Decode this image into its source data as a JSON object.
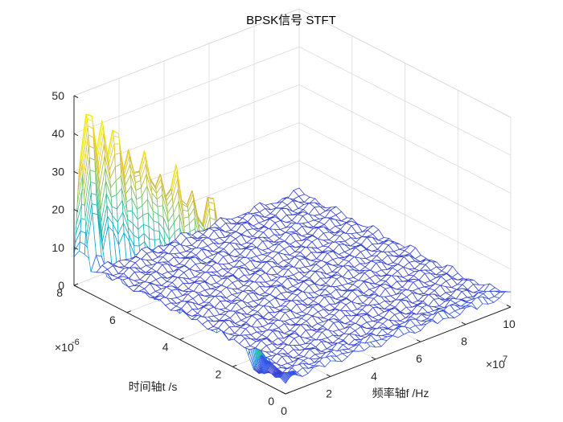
{
  "chart_data": {
    "type": "surface-mesh",
    "title": "BPSK信号 STFT",
    "xlabel": "频率轴f /Hz",
    "ylabel": "时间轴t /s",
    "zlabel": "",
    "x_exponent_base": "×10",
    "x_exponent_power": "7",
    "y_exponent_base": "×10",
    "y_exponent_power": "-6",
    "xlim": [
      0,
      10
    ],
    "ylim": [
      0,
      8
    ],
    "zlim": [
      0,
      50
    ],
    "x_ticks": [
      0,
      2,
      4,
      6,
      8,
      10
    ],
    "y_ticks": [
      0,
      2,
      4,
      6,
      8
    ],
    "z_ticks": [
      0,
      10,
      20,
      30,
      40,
      50
    ],
    "x_tick_labels": [
      "0",
      "2",
      "4",
      "6",
      "8",
      "10"
    ],
    "y_tick_labels": [
      "0",
      "2",
      "4",
      "6",
      "8"
    ],
    "z_tick_labels": [
      "0",
      "10",
      "20",
      "30",
      "40",
      "50"
    ],
    "grid": true,
    "colormap": "parula",
    "carrier_frequency_x": 0.3,
    "ridge_peaks_time": [
      7.7,
      7.2,
      6.7,
      6.2,
      5.6,
      5.0,
      4.4,
      3.8,
      3.1,
      2.4,
      1.7
    ],
    "ridge_peaks_value": [
      47,
      43,
      45,
      40,
      42,
      38,
      41,
      37,
      39,
      35,
      37
    ],
    "ridge_min_value": 28,
    "noise_floor_value": 3
  }
}
